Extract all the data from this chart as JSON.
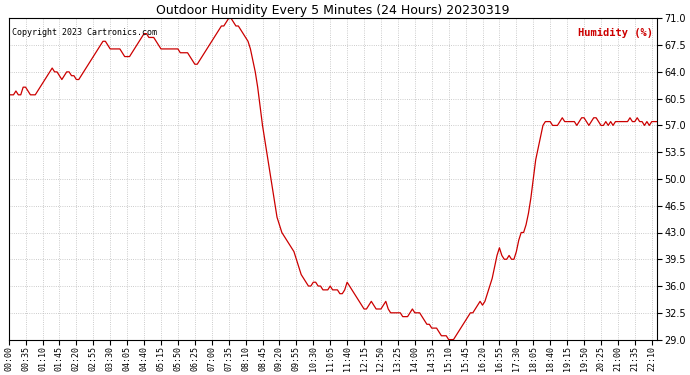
{
  "title": "Outdoor Humidity Every 5 Minutes (24 Hours) 20230319",
  "copyright": "Copyright 2023 Cartronics.com",
  "legend_label": "Humidity (%)",
  "ylim": [
    29.0,
    71.0
  ],
  "yticks": [
    29.0,
    32.5,
    36.0,
    39.5,
    43.0,
    46.5,
    50.0,
    53.5,
    57.0,
    60.5,
    64.0,
    67.5,
    71.0
  ],
  "line_color": "#cc0000",
  "background_color": "#ffffff",
  "grid_color": "#bbbbbb",
  "title_color": "#000000",
  "copyright_color": "#000000",
  "legend_color": "#cc0000",
  "x_tick_interval": 7,
  "figsize": [
    6.9,
    3.75
  ],
  "dpi": 100,
  "humidity_data": [
    61.0,
    61.0,
    61.0,
    61.5,
    61.0,
    61.0,
    62.0,
    62.0,
    61.5,
    61.0,
    61.0,
    61.0,
    61.5,
    62.0,
    62.5,
    63.0,
    63.5,
    64.0,
    64.5,
    64.0,
    64.0,
    63.5,
    63.0,
    63.5,
    64.0,
    64.0,
    63.5,
    63.5,
    63.0,
    63.0,
    63.5,
    64.0,
    64.5,
    65.0,
    65.5,
    66.0,
    66.5,
    67.0,
    67.5,
    68.0,
    68.0,
    67.5,
    67.0,
    67.0,
    67.0,
    67.0,
    67.0,
    66.5,
    66.0,
    66.0,
    66.0,
    66.5,
    67.0,
    67.5,
    68.0,
    68.5,
    69.0,
    69.0,
    68.5,
    68.5,
    68.5,
    68.0,
    67.5,
    67.0,
    67.0,
    67.0,
    67.0,
    67.0,
    67.0,
    67.0,
    67.0,
    66.5,
    66.5,
    66.5,
    66.5,
    66.0,
    65.5,
    65.0,
    65.0,
    65.5,
    66.0,
    66.5,
    67.0,
    67.5,
    68.0,
    68.5,
    69.0,
    69.5,
    70.0,
    70.0,
    70.5,
    71.0,
    71.0,
    70.5,
    70.0,
    70.0,
    69.5,
    69.0,
    68.5,
    68.0,
    67.0,
    65.5,
    64.0,
    62.0,
    59.5,
    57.0,
    55.0,
    53.0,
    51.0,
    49.0,
    47.0,
    45.0,
    44.0,
    43.0,
    42.5,
    42.0,
    41.5,
    41.0,
    40.5,
    39.5,
    38.5,
    37.5,
    37.0,
    36.5,
    36.0,
    36.0,
    36.5,
    36.5,
    36.0,
    36.0,
    35.5,
    35.5,
    35.5,
    36.0,
    35.5,
    35.5,
    35.5,
    35.0,
    35.0,
    35.5,
    36.5,
    36.0,
    35.5,
    35.0,
    34.5,
    34.0,
    33.5,
    33.0,
    33.0,
    33.5,
    34.0,
    33.5,
    33.0,
    33.0,
    33.0,
    33.5,
    34.0,
    33.0,
    32.5,
    32.5,
    32.5,
    32.5,
    32.5,
    32.0,
    32.0,
    32.0,
    32.5,
    33.0,
    32.5,
    32.5,
    32.5,
    32.0,
    31.5,
    31.0,
    31.0,
    30.5,
    30.5,
    30.5,
    30.0,
    29.5,
    29.5,
    29.5,
    29.0,
    29.0,
    29.0,
    29.5,
    30.0,
    30.5,
    31.0,
    31.5,
    32.0,
    32.5,
    32.5,
    33.0,
    33.5,
    34.0,
    33.5,
    34.0,
    35.0,
    36.0,
    37.0,
    38.5,
    40.0,
    41.0,
    40.0,
    39.5,
    39.5,
    40.0,
    39.5,
    39.5,
    40.5,
    42.0,
    43.0,
    43.0,
    44.0,
    45.5,
    47.5,
    50.0,
    52.5,
    54.0,
    55.5,
    57.0,
    57.5,
    57.5,
    57.5,
    57.0,
    57.0,
    57.0,
    57.5,
    58.0,
    57.5,
    57.5,
    57.5,
    57.5,
    57.5,
    57.0,
    57.5,
    58.0,
    58.0,
    57.5,
    57.0,
    57.5,
    58.0,
    58.0,
    57.5,
    57.0,
    57.0,
    57.5,
    57.0,
    57.5,
    57.0,
    57.5,
    57.5,
    57.5,
    57.5,
    57.5,
    57.5,
    58.0,
    57.5,
    57.5,
    58.0,
    57.5,
    57.5,
    57.0,
    57.5,
    57.0,
    57.5,
    57.5,
    57.5
  ]
}
